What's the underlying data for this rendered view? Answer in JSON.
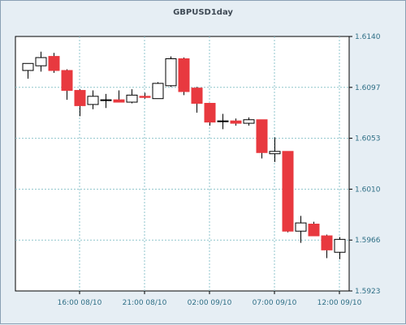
{
  "chart_data": {
    "type": "candlestick",
    "title": "GBPUSD1day",
    "ylim": [
      1.5923,
      1.614
    ],
    "y_ticks": [
      "1.6140",
      "1.6097",
      "1.6053",
      "1.6010",
      "1.5966",
      "1.5923"
    ],
    "x_ticks": [
      "16:00 08/10",
      "21:00 08/10",
      "02:00 09/10",
      "07:00 09/10",
      "12:00 09/10"
    ],
    "grid": true,
    "colors": {
      "up": "#ffffff",
      "down": "#e8393f",
      "outline": "#000000",
      "grid": "#8fc5cc",
      "plot_bg": "#ffffff"
    },
    "candles": [
      {
        "o": 1.6111,
        "h": 1.6117,
        "l": 1.6104,
        "c": 1.6117
      },
      {
        "o": 1.6115,
        "h": 1.6127,
        "l": 1.611,
        "c": 1.6122
      },
      {
        "o": 1.6123,
        "h": 1.6126,
        "l": 1.6109,
        "c": 1.6111
      },
      {
        "o": 1.6111,
        "h": 1.6112,
        "l": 1.6086,
        "c": 1.6094
      },
      {
        "o": 1.6094,
        "h": 1.6095,
        "l": 1.6072,
        "c": 1.6081
      },
      {
        "o": 1.6082,
        "h": 1.6094,
        "l": 1.6078,
        "c": 1.6089
      },
      {
        "o": 1.6086,
        "h": 1.6091,
        "l": 1.6079,
        "c": 1.6086
      },
      {
        "o": 1.6086,
        "h": 1.6094,
        "l": 1.6084,
        "c": 1.6084
      },
      {
        "o": 1.6084,
        "h": 1.6095,
        "l": 1.6083,
        "c": 1.609
      },
      {
        "o": 1.6089,
        "h": 1.6092,
        "l": 1.6087,
        "c": 1.6088
      },
      {
        "o": 1.6087,
        "h": 1.6101,
        "l": 1.6087,
        "c": 1.61
      },
      {
        "o": 1.6098,
        "h": 1.6123,
        "l": 1.6097,
        "c": 1.6121
      },
      {
        "o": 1.6121,
        "h": 1.6122,
        "l": 1.609,
        "c": 1.6093
      },
      {
        "o": 1.6096,
        "h": 1.6097,
        "l": 1.6075,
        "c": 1.6083
      },
      {
        "o": 1.6083,
        "h": 1.6083,
        "l": 1.6064,
        "c": 1.6067
      },
      {
        "o": 1.6068,
        "h": 1.6074,
        "l": 1.6061,
        "c": 1.6068
      },
      {
        "o": 1.6068,
        "h": 1.607,
        "l": 1.6064,
        "c": 1.6066
      },
      {
        "o": 1.6066,
        "h": 1.6071,
        "l": 1.6064,
        "c": 1.6069
      },
      {
        "o": 1.6069,
        "h": 1.6069,
        "l": 1.6036,
        "c": 1.6041
      },
      {
        "o": 1.604,
        "h": 1.6054,
        "l": 1.6033,
        "c": 1.6042
      },
      {
        "o": 1.6042,
        "h": 1.6042,
        "l": 1.5973,
        "c": 1.5974
      },
      {
        "o": 1.5974,
        "h": 1.5987,
        "l": 1.5964,
        "c": 1.5981
      },
      {
        "o": 1.598,
        "h": 1.5982,
        "l": 1.597,
        "c": 1.597
      },
      {
        "o": 1.597,
        "h": 1.5971,
        "l": 1.5951,
        "c": 1.5958
      },
      {
        "o": 1.5956,
        "h": 1.5969,
        "l": 1.595,
        "c": 1.5967
      }
    ]
  }
}
